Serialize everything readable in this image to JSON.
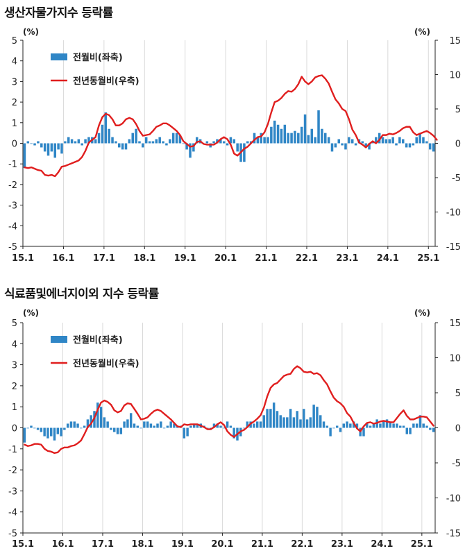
{
  "chart_data": [
    {
      "type": "bar",
      "title": "생산자물가지수 등락률",
      "left_unit": "(%)",
      "right_unit": "(%)",
      "x_tick_labels": [
        "15.1",
        "16.1",
        "17.1",
        "18.1",
        "19.1",
        "20.1",
        "21.1",
        "22.1",
        "23.1",
        "24.1",
        "25.1"
      ],
      "ylim_left": [
        -5,
        5
      ],
      "ylim_right": [
        -15,
        15
      ],
      "left_tick_labels": [
        "5",
        "4",
        "3",
        "2",
        "1",
        "0",
        "-1",
        "-2",
        "-3",
        "-4",
        "-5"
      ],
      "right_tick_labels": [
        "15",
        "10",
        "5",
        "0",
        "-5",
        "-10",
        "-15"
      ],
      "grid": "vertical",
      "legend": "top-left",
      "series": [
        {
          "name": "전월비(좌축)",
          "axis": "left",
          "type": "bar",
          "color": "#2f86c6",
          "values": [
            -1.2,
            0.1,
            0.0,
            -0.1,
            0.1,
            -0.2,
            -0.4,
            -0.6,
            -0.4,
            -0.7,
            -0.3,
            -0.5,
            0.1,
            0.3,
            0.2,
            0.1,
            0.2,
            -0.1,
            0.2,
            0.3,
            0.3,
            0.2,
            0.5,
            0.9,
            1.5,
            0.7,
            0.3,
            0.1,
            -0.2,
            -0.3,
            -0.3,
            0.2,
            0.5,
            0.7,
            0.1,
            -0.2,
            0.3,
            0.1,
            0.1,
            0.2,
            0.3,
            0.1,
            -0.1,
            0.2,
            0.5,
            0.5,
            0.4,
            0.0,
            -0.3,
            -0.7,
            -0.4,
            0.3,
            0.2,
            0.0,
            0.1,
            -0.2,
            0.1,
            0.2,
            0.2,
            0.1,
            -0.1,
            0.3,
            0.2,
            -0.4,
            -0.9,
            -0.9,
            0.1,
            0.1,
            0.5,
            0.3,
            0.5,
            0.3,
            0.3,
            0.8,
            1.1,
            0.9,
            0.7,
            0.9,
            0.5,
            0.5,
            0.6,
            0.5,
            0.8,
            1.4,
            0.4,
            0.7,
            0.3,
            1.6,
            0.7,
            0.5,
            0.3,
            -0.4,
            -0.2,
            0.2,
            -0.1,
            -0.3,
            0.3,
            0.2,
            -0.1,
            0.2,
            0.1,
            -0.2,
            -0.3,
            0.1,
            0.3,
            0.5,
            0.3,
            0.2,
            0.2,
            0.3,
            -0.1,
            0.3,
            0.2,
            -0.2,
            -0.2,
            -0.1,
            0.3,
            0.5,
            0.3,
            0.1,
            -0.3,
            -0.4
          ]
        },
        {
          "name": "전년동월비(우축)",
          "axis": "right",
          "type": "line",
          "color": "#e01e1e",
          "values": [
            -3.5,
            -3.6,
            -3.5,
            -3.7,
            -3.9,
            -4.0,
            -4.6,
            -4.7,
            -4.6,
            -4.8,
            -4.2,
            -3.4,
            -3.3,
            -3.1,
            -2.9,
            -2.7,
            -2.5,
            -2.0,
            -1.1,
            0.1,
            0.5,
            0.9,
            2.6,
            3.8,
            4.3,
            4.1,
            3.5,
            2.6,
            2.6,
            2.9,
            3.5,
            3.7,
            3.5,
            2.8,
            1.8,
            1.1,
            1.2,
            1.3,
            1.8,
            2.4,
            2.6,
            2.9,
            2.9,
            2.6,
            2.2,
            1.8,
            1.2,
            0.3,
            -0.1,
            -0.5,
            -0.4,
            0.2,
            0.3,
            -0.1,
            -0.2,
            -0.2,
            -0.2,
            0.1,
            0.6,
            0.9,
            0.6,
            -0.2,
            -1.5,
            -1.8,
            -1.3,
            -0.8,
            -0.5,
            0.0,
            0.5,
            0.9,
            1.0,
            1.6,
            2.8,
            4.5,
            6.0,
            6.2,
            6.6,
            7.2,
            7.6,
            7.5,
            7.9,
            8.6,
            9.7,
            9.0,
            8.6,
            9.0,
            9.6,
            9.8,
            9.9,
            9.4,
            8.7,
            7.5,
            6.4,
            5.8,
            5.0,
            4.7,
            3.5,
            2.0,
            1.2,
            0.1,
            -0.2,
            -0.6,
            -0.1,
            0.3,
            0.0,
            0.5,
            1.2,
            1.2,
            1.4,
            1.3,
            1.5,
            1.8,
            2.2,
            2.4,
            2.4,
            1.6,
            1.2,
            1.4,
            1.6,
            1.8,
            1.5,
            1.1,
            0.5
          ]
        }
      ]
    },
    {
      "type": "bar",
      "title": "식료품및에너지이외 지수 등락률",
      "left_unit": "(%)",
      "right_unit": "(%)",
      "x_tick_labels": [
        "15.1",
        "16.1",
        "17.1",
        "18.1",
        "19.1",
        "20.1",
        "21.1",
        "22.1",
        "23.1",
        "24.1",
        "25.1"
      ],
      "ylim_left": [
        -5,
        5
      ],
      "ylim_right": [
        -15,
        15
      ],
      "left_tick_labels": [
        "5",
        "4",
        "3",
        "2",
        "1",
        "0",
        "-1",
        "-2",
        "-3",
        "-4",
        "-5"
      ],
      "right_tick_labels": [
        "15",
        "10",
        "5",
        "0",
        "-5",
        "-10",
        "-15"
      ],
      "grid": "vertical",
      "legend": "top-left",
      "series": [
        {
          "name": "전월비(좌축)",
          "axis": "left",
          "type": "bar",
          "color": "#2f86c6",
          "values": [
            -0.7,
            0.0,
            0.1,
            0.0,
            -0.1,
            -0.2,
            -0.4,
            -0.5,
            -0.4,
            -0.6,
            -0.3,
            -0.4,
            -0.1,
            0.2,
            0.3,
            0.3,
            0.2,
            0.0,
            0.1,
            0.4,
            0.6,
            0.8,
            1.2,
            1.0,
            0.5,
            0.3,
            -0.1,
            -0.2,
            -0.3,
            -0.3,
            0.3,
            0.4,
            0.7,
            0.2,
            0.1,
            0.0,
            0.3,
            0.3,
            0.2,
            0.1,
            0.2,
            0.3,
            0.0,
            0.1,
            0.3,
            0.2,
            0.1,
            0.1,
            -0.5,
            -0.4,
            0.1,
            0.2,
            0.2,
            0.2,
            0.1,
            0.0,
            -0.1,
            0.2,
            0.2,
            0.1,
            0.0,
            0.3,
            0.1,
            -0.5,
            -0.6,
            -0.4,
            0.0,
            0.3,
            0.3,
            0.2,
            0.3,
            0.3,
            0.6,
            0.9,
            0.9,
            1.2,
            0.8,
            0.6,
            0.5,
            0.5,
            0.9,
            0.5,
            0.8,
            0.4,
            0.9,
            0.4,
            0.5,
            1.1,
            1.0,
            0.6,
            0.3,
            0.1,
            -0.4,
            0.0,
            0.1,
            -0.2,
            0.2,
            0.3,
            0.2,
            0.3,
            0.2,
            -0.4,
            -0.4,
            0.2,
            0.1,
            0.2,
            0.4,
            0.2,
            0.3,
            0.4,
            0.3,
            0.2,
            0.2,
            0.1,
            0.1,
            -0.3,
            -0.3,
            0.2,
            0.2,
            0.6,
            0.2,
            0.1,
            -0.1,
            -0.2
          ]
        },
        {
          "name": "전년동월비(우축)",
          "axis": "right",
          "type": "line",
          "color": "#e01e1e",
          "values": [
            -2.4,
            -2.6,
            -2.5,
            -2.3,
            -2.3,
            -2.4,
            -3.0,
            -3.3,
            -3.4,
            -3.6,
            -3.5,
            -3.0,
            -2.8,
            -2.8,
            -2.6,
            -2.5,
            -2.2,
            -1.8,
            -0.9,
            0.1,
            0.6,
            1.4,
            2.6,
            3.6,
            3.9,
            3.7,
            3.3,
            2.5,
            2.2,
            2.4,
            3.2,
            3.5,
            3.4,
            2.7,
            2.0,
            1.2,
            1.3,
            1.5,
            2.0,
            2.4,
            2.6,
            2.4,
            2.0,
            1.6,
            1.2,
            0.7,
            0.2,
            0.1,
            0.5,
            0.4,
            0.5,
            0.5,
            0.5,
            0.3,
            0.1,
            -0.2,
            -0.2,
            0.1,
            0.5,
            0.8,
            0.4,
            -0.5,
            -1.0,
            -1.3,
            -0.9,
            -0.5,
            -0.3,
            0.1,
            0.6,
            0.9,
            1.3,
            1.8,
            2.9,
            4.5,
            5.7,
            6.2,
            6.4,
            6.9,
            7.4,
            7.6,
            7.7,
            8.4,
            8.8,
            8.5,
            8.0,
            7.9,
            8.0,
            7.7,
            7.8,
            7.5,
            6.8,
            6.2,
            5.2,
            4.3,
            3.8,
            3.5,
            3.0,
            2.1,
            1.6,
            0.7,
            -0.1,
            -0.5,
            0.2,
            0.7,
            0.8,
            0.6,
            0.7,
            0.9,
            1.0,
            0.9,
            0.8,
            0.8,
            1.4,
            2.0,
            2.5,
            1.7,
            1.2,
            1.2,
            1.4,
            1.6,
            1.6,
            1.5,
            0.9,
            0.3
          ]
        }
      ]
    }
  ]
}
